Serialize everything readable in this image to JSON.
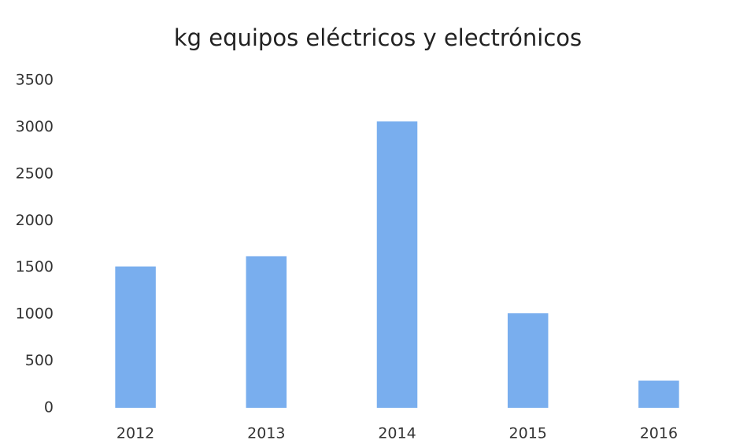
{
  "chart_data": {
    "type": "bar",
    "title": "kg equipos eléctricos y electrónicos",
    "categories": [
      "2012",
      "2013",
      "2014",
      "2015",
      "2016"
    ],
    "values": [
      1510,
      1620,
      3060,
      1010,
      290
    ],
    "color": "#79aeee",
    "ylim": [
      0,
      3500
    ],
    "yticks": [
      0,
      500,
      1000,
      1500,
      2000,
      2500,
      3000,
      3500
    ],
    "grid": false
  }
}
